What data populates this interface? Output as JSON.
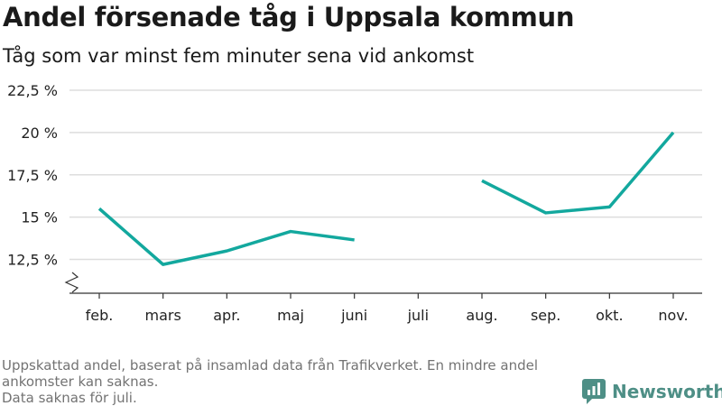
{
  "chart_data": {
    "type": "line",
    "title": "Andel försenade tåg i Uppsala kommun",
    "subtitle": "Tåg som var minst fem minuter sena vid ankomst",
    "categories": [
      "feb.",
      "mars",
      "apr.",
      "maj",
      "juni",
      "juli",
      "aug.",
      "sep.",
      "okt.",
      "nov."
    ],
    "series": [
      {
        "values": [
          15.5,
          12.2,
          13.0,
          14.15,
          13.65,
          null,
          17.15,
          15.25,
          15.6,
          20.0
        ],
        "color": "#13a89e"
      }
    ],
    "y_ticks": [
      12.5,
      15,
      17.5,
      20,
      22.5
    ],
    "y_tick_labels": [
      "12,5 %",
      "15 %",
      "17,5 %",
      "20 %",
      "22,5 %"
    ],
    "ylim": [
      10.5,
      22.5
    ],
    "y_axis_break": true,
    "grid": true,
    "footnotes": [
      "Uppskattad andel, baserat på insamlad data från Trafikverket. En mindre andel ankomster kan saknas.",
      "Data saknas för juli."
    ]
  },
  "brand": {
    "name": "Newsworthy",
    "icon": "newsworthy-logo-icon",
    "color": "#4e8f86"
  }
}
